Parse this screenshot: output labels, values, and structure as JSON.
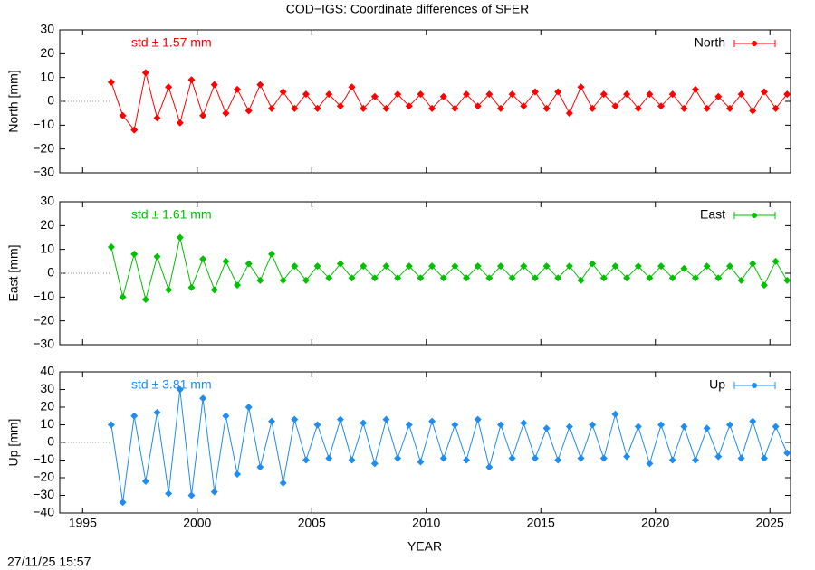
{
  "title": "COD−IGS: Coordinate differences of SFER",
  "xlabel": "YEAR",
  "timestamp": "27/11/25 15:57",
  "chart_data": [
    {
      "type": "scatter",
      "ylabel": "North [mm]",
      "annotation": "std ± 1.57 mm",
      "x": [
        1996.25,
        1996.75,
        1997.25,
        1997.75,
        1998.25,
        1998.75,
        1999.25,
        1999.75,
        2000.25,
        2000.75,
        2001.25,
        2001.75,
        2002.25,
        2002.75,
        2003.25,
        2003.75,
        2004.25,
        2004.75,
        2005.25,
        2005.75,
        2006.25,
        2006.75,
        2007.25,
        2007.75,
        2008.25,
        2008.75,
        2009.25,
        2009.75,
        2010.25,
        2010.75,
        2011.25,
        2011.75,
        2012.25,
        2012.75,
        2013.25,
        2013.75,
        2014.25,
        2014.75,
        2015.25,
        2015.75,
        2016.25,
        2016.75,
        2017.25,
        2017.75,
        2018.25,
        2018.75,
        2019.25,
        2019.75,
        2020.25,
        2020.75,
        2021.25,
        2021.75,
        2022.25,
        2022.75,
        2023.25,
        2023.75,
        2024.25,
        2024.75,
        2025.25,
        2025.75
      ],
      "series": [
        {
          "name": "North",
          "color": "#ff0000",
          "values": [
            8,
            -6,
            -12,
            12,
            -7,
            6,
            -9,
            9,
            -6,
            7,
            -5,
            5,
            -4,
            7,
            -3,
            4,
            -3,
            3,
            -3,
            3,
            -2,
            6,
            -3,
            2,
            -3,
            3,
            -2,
            3,
            -3,
            2,
            -3,
            3,
            -2,
            3,
            -3,
            3,
            -2,
            4,
            -3,
            4,
            -5,
            6,
            -3,
            3,
            -2,
            3,
            -3,
            3,
            -2,
            3,
            -3,
            5,
            -3,
            2,
            -3,
            3,
            -4,
            4,
            -3,
            3
          ]
        }
      ],
      "xlim": [
        1994,
        2025.9
      ],
      "xticks": [
        1995,
        2000,
        2005,
        2010,
        2015,
        2020,
        2025
      ],
      "ylim": [
        -30,
        30
      ],
      "yticks": [
        {
          "value": -30,
          "label": "−30"
        },
        {
          "value": -20,
          "label": "−20"
        },
        {
          "value": -10,
          "label": "−10"
        },
        0,
        10,
        20,
        30
      ]
    },
    {
      "type": "scatter",
      "ylabel": "East [mm]",
      "annotation": "std ± 1.61 mm",
      "x": [
        1996.25,
        1996.75,
        1997.25,
        1997.75,
        1998.25,
        1998.75,
        1999.25,
        1999.75,
        2000.25,
        2000.75,
        2001.25,
        2001.75,
        2002.25,
        2002.75,
        2003.25,
        2003.75,
        2004.25,
        2004.75,
        2005.25,
        2005.75,
        2006.25,
        2006.75,
        2007.25,
        2007.75,
        2008.25,
        2008.75,
        2009.25,
        2009.75,
        2010.25,
        2010.75,
        2011.25,
        2011.75,
        2012.25,
        2012.75,
        2013.25,
        2013.75,
        2014.25,
        2014.75,
        2015.25,
        2015.75,
        2016.25,
        2016.75,
        2017.25,
        2017.75,
        2018.25,
        2018.75,
        2019.25,
        2019.75,
        2020.25,
        2020.75,
        2021.25,
        2021.75,
        2022.25,
        2022.75,
        2023.25,
        2023.75,
        2024.25,
        2024.75,
        2025.25,
        2025.75
      ],
      "series": [
        {
          "name": "East",
          "color": "#00c000",
          "values": [
            11,
            -10,
            8,
            -11,
            7,
            -7,
            15,
            -6,
            6,
            -7,
            5,
            -5,
            4,
            -3,
            8,
            -3,
            3,
            -3,
            3,
            -2,
            4,
            -2,
            3,
            -2,
            3,
            -2,
            3,
            -2,
            3,
            -2,
            3,
            -2,
            3,
            -2,
            3,
            -2,
            3,
            -2,
            3,
            -2,
            3,
            -3,
            4,
            -2,
            3,
            -2,
            3,
            -2,
            3,
            -2,
            2,
            -2,
            3,
            -2,
            3,
            -3,
            4,
            -5,
            5,
            -3
          ]
        }
      ],
      "xlim": [
        1994,
        2025.9
      ],
      "xticks": [
        1995,
        2000,
        2005,
        2010,
        2015,
        2020,
        2025
      ],
      "ylim": [
        -30,
        30
      ],
      "yticks": [
        {
          "value": -30,
          "label": "−30"
        },
        {
          "value": -20,
          "label": "−20"
        },
        {
          "value": -10,
          "label": "−10"
        },
        0,
        10,
        20,
        30
      ]
    },
    {
      "type": "scatter",
      "ylabel": "Up [mm]",
      "annotation": "std ± 3.81 mm",
      "x": [
        1996.25,
        1996.75,
        1997.25,
        1997.75,
        1998.25,
        1998.75,
        1999.25,
        1999.75,
        2000.25,
        2000.75,
        2001.25,
        2001.75,
        2002.25,
        2002.75,
        2003.25,
        2003.75,
        2004.25,
        2004.75,
        2005.25,
        2005.75,
        2006.25,
        2006.75,
        2007.25,
        2007.75,
        2008.25,
        2008.75,
        2009.25,
        2009.75,
        2010.25,
        2010.75,
        2011.25,
        2011.75,
        2012.25,
        2012.75,
        2013.25,
        2013.75,
        2014.25,
        2014.75,
        2015.25,
        2015.75,
        2016.25,
        2016.75,
        2017.25,
        2017.75,
        2018.25,
        2018.75,
        2019.25,
        2019.75,
        2020.25,
        2020.75,
        2021.25,
        2021.75,
        2022.25,
        2022.75,
        2023.25,
        2023.75,
        2024.25,
        2024.75,
        2025.25,
        2025.75
      ],
      "series": [
        {
          "name": "Up",
          "color": "#1e8cf0",
          "values": [
            10,
            -34,
            15,
            -22,
            17,
            -29,
            30,
            -30,
            25,
            -28,
            15,
            -18,
            20,
            -14,
            12,
            -23,
            13,
            -10,
            10,
            -9,
            13,
            -10,
            11,
            -12,
            13,
            -9,
            10,
            -11,
            12,
            -9,
            10,
            -10,
            13,
            -14,
            10,
            -9,
            11,
            -9,
            8,
            -10,
            9,
            -9,
            10,
            -9,
            16,
            -8,
            9,
            -12,
            10,
            -10,
            9,
            -10,
            8,
            -8,
            10,
            -9,
            12,
            -9,
            9,
            -6
          ]
        }
      ],
      "xlim": [
        1994,
        2025.9
      ],
      "xticks": [
        1995,
        2000,
        2005,
        2010,
        2015,
        2020,
        2025
      ],
      "ylim": [
        -40,
        40
      ],
      "yticks": [
        {
          "value": -40,
          "label": "−40"
        },
        {
          "value": -30,
          "label": "−30"
        },
        {
          "value": -20,
          "label": "−20"
        },
        {
          "value": -10,
          "label": "−10"
        },
        0,
        10,
        20,
        30,
        40
      ]
    }
  ]
}
